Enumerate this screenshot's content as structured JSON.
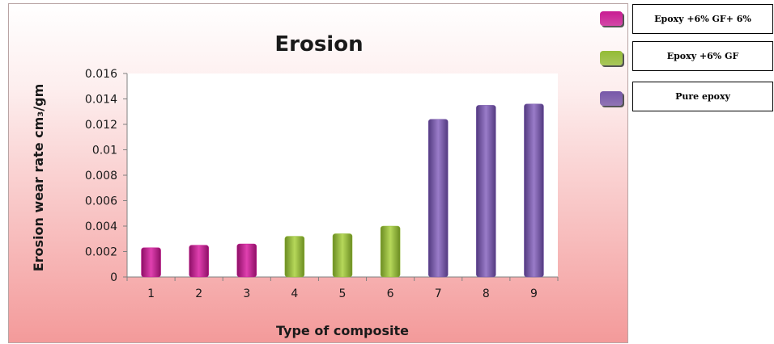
{
  "chart_data": {
    "type": "bar",
    "title": "Erosion",
    "xlabel": "Type of composite",
    "ylabel": "Erosion wear rate cm₃/gm",
    "categories": [
      "1",
      "2",
      "3",
      "4",
      "5",
      "6",
      "7",
      "8",
      "9"
    ],
    "values": [
      0.0023,
      0.0025,
      0.0026,
      0.0032,
      0.0034,
      0.004,
      0.0124,
      0.0135,
      0.0136
    ],
    "bar_colors": [
      "#c81c92",
      "#c81c92",
      "#c81c92",
      "#93bb36",
      "#93bb36",
      "#93bb36",
      "#7657a8",
      "#7657a8",
      "#7657a8"
    ],
    "ylim": [
      0,
      0.016
    ],
    "yticks": [
      0,
      0.002,
      0.004,
      0.006,
      0.008,
      0.01,
      0.012,
      0.014,
      0.016
    ],
    "ytick_labels": [
      "0",
      "0.002",
      "0.004",
      "0.006",
      "0.008",
      "0.01",
      "0.012",
      "0.014",
      "0.016"
    ],
    "grid": false,
    "legend_position": "right",
    "legend": [
      {
        "label": "Epoxy +6% GF+ 6%",
        "color": "#c81c92"
      },
      {
        "label": "Epoxy +6% GF",
        "color": "#93bb36"
      },
      {
        "label": "Pure epoxy",
        "color": "#7657a8"
      }
    ]
  }
}
